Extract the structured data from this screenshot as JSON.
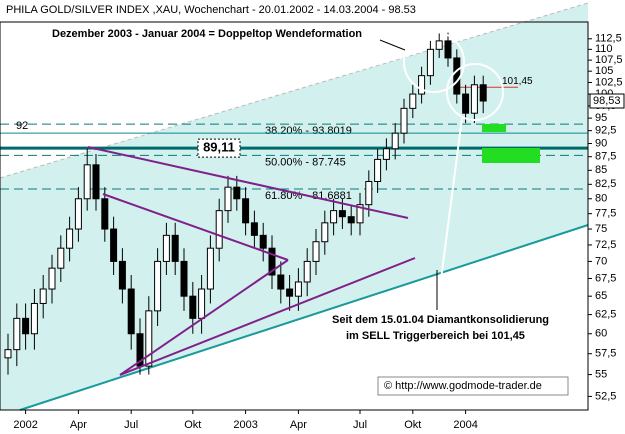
{
  "chart_data": {
    "type": "candlestick",
    "title": "PHILA GOLD/SILVER INDEX ,XAU, Wochenchart - 20.01.2002 - 14.03.2004 - 98.53",
    "categories": [
      null,
      null,
      "2002",
      null,
      null,
      null,
      null,
      null,
      "Apr",
      null,
      null,
      null,
      null,
      null,
      "Jul",
      null,
      null,
      null,
      null,
      null,
      null,
      "Okt",
      null,
      null,
      null,
      null,
      null,
      "2003",
      null,
      null,
      null,
      null,
      null,
      "Apr",
      null,
      null,
      null,
      null,
      null,
      null,
      "Jul",
      null,
      null,
      null,
      null,
      null,
      "Okt",
      null,
      null,
      null,
      null,
      null,
      "2004",
      null,
      null
    ],
    "open": [
      57,
      58,
      62,
      60,
      64,
      66,
      69,
      72,
      75,
      80,
      86,
      80,
      75,
      70,
      66,
      60,
      56,
      63,
      70,
      74,
      70,
      65,
      62,
      66,
      72,
      78,
      82,
      80,
      76,
      74,
      72,
      68,
      66,
      65,
      67,
      70,
      73,
      76,
      78,
      77,
      76,
      79,
      83,
      87,
      89,
      92,
      97,
      100,
      104,
      110,
      112,
      108,
      100,
      96,
      102
    ],
    "high": [
      60,
      64,
      64,
      66,
      68,
      71,
      74,
      77,
      82,
      89,
      88,
      82,
      77,
      72,
      68,
      62,
      65,
      72,
      76,
      76,
      72,
      67,
      68,
      74,
      80,
      84,
      84,
      82,
      78,
      76,
      74,
      70,
      68,
      69,
      72,
      75,
      78,
      80,
      80,
      79,
      81,
      85,
      89,
      91,
      94,
      99,
      102,
      106,
      112,
      114,
      114,
      110,
      102,
      104,
      104
    ],
    "low": [
      55,
      56,
      58,
      58,
      62,
      64,
      67,
      70,
      73,
      78,
      78,
      73,
      68,
      64,
      58,
      55,
      55,
      61,
      68,
      68,
      63,
      60,
      60,
      64,
      70,
      76,
      78,
      74,
      72,
      70,
      66,
      64,
      63,
      63,
      65,
      68,
      71,
      74,
      75,
      74,
      74,
      77,
      81,
      85,
      87,
      90,
      95,
      98,
      102,
      108,
      106,
      98,
      94,
      94,
      96
    ],
    "close": [
      58,
      62,
      60,
      64,
      66,
      69,
      72,
      75,
      80,
      86,
      80,
      75,
      70,
      66,
      60,
      56,
      63,
      70,
      74,
      70,
      65,
      62,
      66,
      72,
      78,
      82,
      80,
      76,
      74,
      72,
      68,
      66,
      65,
      67,
      70,
      73,
      76,
      78,
      77,
      76,
      79,
      83,
      87,
      89,
      92,
      97,
      100,
      104,
      110,
      112,
      108,
      100,
      96,
      102,
      98.53
    ],
    "up_color": "#ffffff",
    "down_color": "#000000",
    "log_scale": true,
    "ylim": [
      51,
      116.6
    ],
    "yticks": [
      {
        "value": 52.5,
        "label": "52,5"
      },
      55,
      {
        "value": 57.5,
        "label": "57,5"
      },
      60,
      {
        "value": 62.5,
        "label": "62,5"
      },
      65,
      {
        "value": 67.5,
        "label": "67,5"
      },
      70,
      {
        "value": 72.5,
        "label": "72,5"
      },
      75,
      {
        "value": 77.5,
        "label": "77,5"
      },
      80,
      {
        "value": 82.5,
        "label": "82,5"
      },
      85,
      {
        "value": 87.5,
        "label": "87,5"
      },
      90,
      {
        "value": 92.5,
        "label": "92,5"
      },
      95,
      {
        "value": 97.5,
        "label": "97,5"
      },
      100,
      {
        "value": 102.5,
        "label": "102,5"
      },
      105,
      {
        "value": 107.5,
        "label": "107,5"
      },
      110,
      {
        "value": 112.5,
        "label": "112,5"
      }
    ],
    "last_price": {
      "value": 98.53,
      "label": "98,53"
    },
    "levels": [
      {
        "value": 92,
        "label": "92",
        "color": "#0a8a8a"
      },
      {
        "value": 89.11,
        "label": "89,11",
        "color": "#006a6a"
      },
      {
        "value": 101.45,
        "label": "101,45",
        "color": "#e03030"
      }
    ],
    "fib_levels": [
      {
        "value": 93.8019,
        "label": "38.20% - 93.8019"
      },
      {
        "value": 87.745,
        "label": "50.00% - 87.745"
      },
      {
        "value": 81.6881,
        "label": "61.80% - 81.6881"
      }
    ],
    "annotations": [
      "Dezember 2003 - Januar 2004 = Doppeltop Wendeformation",
      "Seit dem 15.01.04 Diamantkonsolidierung",
      "im SELL Triggerbereich bei 101,45",
      "© http://www.godmode-trader.de"
    ]
  }
}
